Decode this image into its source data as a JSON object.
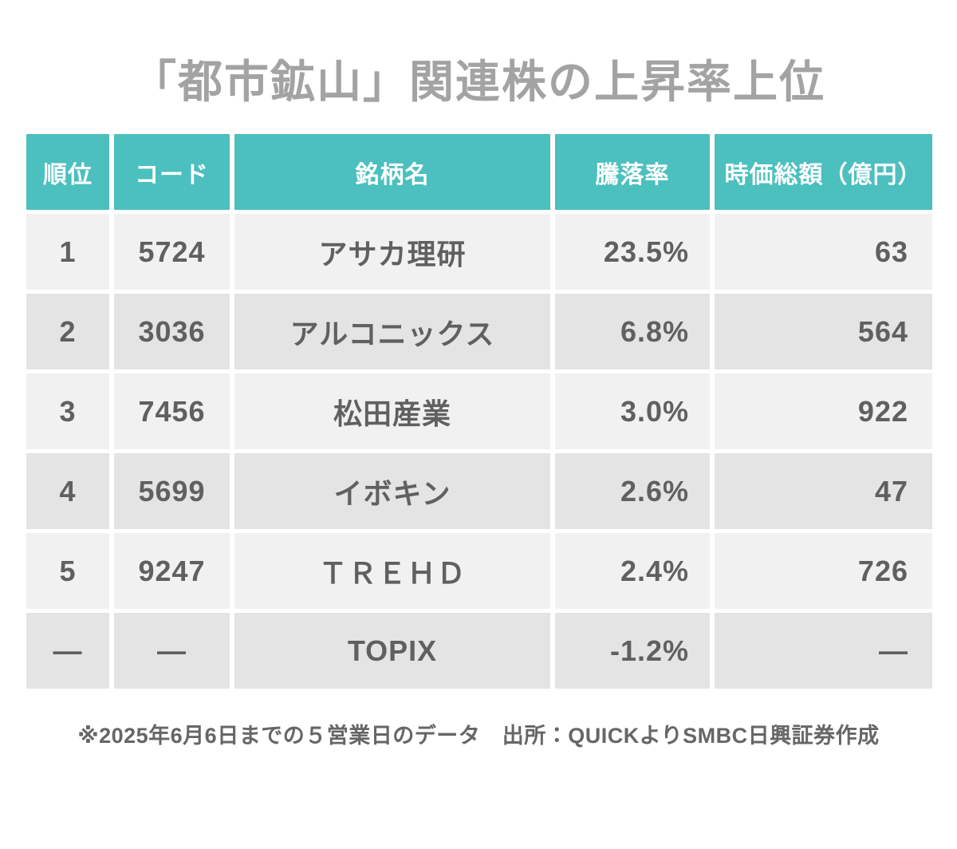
{
  "title": "「都市鉱山」関連株の上昇率上位",
  "table": {
    "headers": {
      "rank": "順位",
      "code": "コード",
      "name": "銘柄名",
      "change": "騰落率",
      "mcap": "時価総額（億円）"
    },
    "rows": [
      {
        "rank": "1",
        "code": "5724",
        "name": "アサカ理研",
        "change": "23.5%",
        "mcap": "63"
      },
      {
        "rank": "2",
        "code": "3036",
        "name": "アルコニックス",
        "change": "6.8%",
        "mcap": "564"
      },
      {
        "rank": "3",
        "code": "7456",
        "name": "松田産業",
        "change": "3.0%",
        "mcap": "922"
      },
      {
        "rank": "4",
        "code": "5699",
        "name": "イボキン",
        "change": "2.6%",
        "mcap": "47"
      },
      {
        "rank": "5",
        "code": "9247",
        "name": "ＴＲＥＨＤ",
        "change": "2.4%",
        "mcap": "726"
      },
      {
        "rank": "—",
        "code": "—",
        "name": "TOPIX",
        "change": "-1.2%",
        "mcap": "—"
      }
    ]
  },
  "footnote": "※2025年6月6日までの５営業日のデータ　出所：QUICKよりSMBC日興証券作成",
  "colors": {
    "header_bg": "#4cbfbf",
    "header_text": "#ffffff",
    "row_odd_bg": "#f1f1f1",
    "row_even_bg": "#e4e4e4",
    "cell_text": "#606060",
    "title_text": "#a3a3a3",
    "footnote_text": "#666666"
  },
  "chart_data": {
    "type": "table",
    "title": "「都市鉱山」関連株の上昇率上位",
    "columns": [
      "順位",
      "コード",
      "銘柄名",
      "騰落率",
      "時価総額（億円）"
    ],
    "rows": [
      [
        "1",
        "5724",
        "アサカ理研",
        "23.5%",
        "63"
      ],
      [
        "2",
        "3036",
        "アルコニックス",
        "6.8%",
        "564"
      ],
      [
        "3",
        "7456",
        "松田産業",
        "3.0%",
        "922"
      ],
      [
        "4",
        "5699",
        "イボキン",
        "2.6%",
        "47"
      ],
      [
        "5",
        "9247",
        "ＴＲＥＨＤ",
        "2.4%",
        "726"
      ],
      [
        "—",
        "—",
        "TOPIX",
        "-1.2%",
        "—"
      ]
    ],
    "change_values_pct": [
      23.5,
      6.8,
      3.0,
      2.6,
      2.4,
      -1.2
    ],
    "market_cap_oku_yen": [
      63,
      564,
      922,
      47,
      726,
      null
    ],
    "note": "※2025年6月6日までの５営業日のデータ　出所：QUICKよりSMBC日興証券作成",
    "legend_position": "none",
    "grid": false
  }
}
